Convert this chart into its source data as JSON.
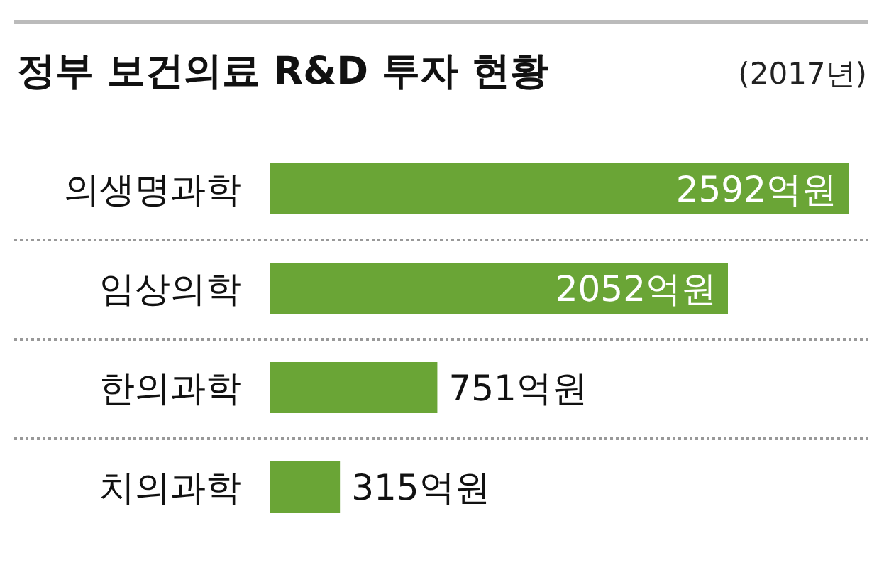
{
  "chart_data": {
    "type": "bar",
    "orientation": "horizontal",
    "title": "정부 보건의료 R&D 투자 현황",
    "subtitle": "(2017년)",
    "categories": [
      "의생명과학",
      "임상의학",
      "한의과학",
      "치의과학"
    ],
    "values": [
      2592,
      2052,
      751,
      315
    ],
    "value_labels": [
      "2592억원",
      "2052억원",
      "751억원",
      "315억원"
    ],
    "color": "#6aa536"
  }
}
